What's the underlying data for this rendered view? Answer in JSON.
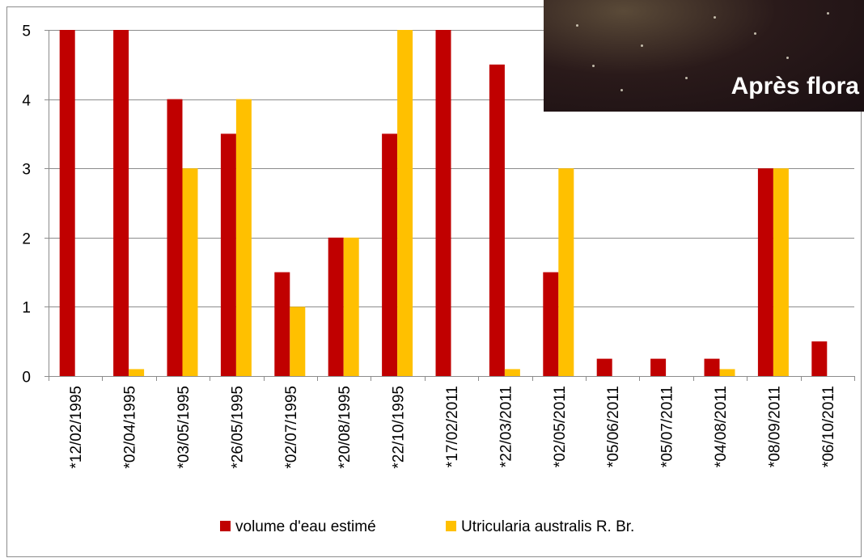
{
  "photo": {
    "caption": "Après flora"
  },
  "colors": {
    "series1": "#C00000",
    "series2": "#FFC000",
    "grid": "#8c8c8c",
    "frame": "#8c8c8c"
  },
  "chart_data": {
    "type": "bar",
    "title": "",
    "xlabel": "",
    "ylabel": "",
    "ylim": [
      0,
      5
    ],
    "yticks": [
      0,
      1,
      2,
      3,
      4,
      5
    ],
    "grid": true,
    "legend_position": "bottom",
    "categories": [
      "*12/02/1995",
      "*02/04/1995",
      "*03/05/1995",
      "*26/05/1995",
      "*02/07/1995",
      "*20/08/1995",
      "*22/10/1995",
      "*17/02/2011",
      "*22/03/2011",
      "*02/05/2011",
      "*05/06/2011",
      "*05/07/2011",
      "*04/08/2011",
      "*08/09/2011",
      "*06/10/2011"
    ],
    "series": [
      {
        "name": "volume d'eau estimé",
        "color": "#C00000",
        "values": [
          5,
          5,
          4,
          3.5,
          1.5,
          2,
          3.5,
          5,
          4.5,
          1.5,
          0.25,
          0.25,
          0.25,
          3,
          0.5
        ]
      },
      {
        "name": "Utricularia australis R. Br.",
        "color": "#FFC000",
        "values": [
          0,
          0.1,
          3,
          4,
          1,
          2,
          5,
          0,
          0.1,
          3,
          0,
          0,
          0.1,
          3,
          0
        ]
      }
    ]
  }
}
